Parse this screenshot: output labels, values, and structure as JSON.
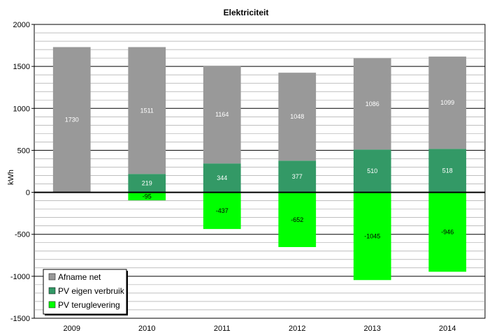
{
  "chart_data": {
    "type": "bar",
    "stacked": true,
    "title": "Elektriciteit",
    "ylabel": "kWh",
    "xlabel": "",
    "ylim": [
      -1500,
      2000
    ],
    "y_major_ticks": [
      -1500,
      -1000,
      -500,
      0,
      500,
      1000,
      1500,
      2000
    ],
    "y_minor_step": 100,
    "grid": true,
    "legend_position": "bottom-left",
    "categories": [
      "2009",
      "2010",
      "2011",
      "2012",
      "2013",
      "2014"
    ],
    "series": [
      {
        "name": "Afname net",
        "color": "#999999",
        "label_color": "#ffffff",
        "values": [
          1730,
          1511,
          1164,
          1048,
          1086,
          1099
        ]
      },
      {
        "name": "PV eigen verbruik",
        "color": "#339966",
        "label_color": "#ffffff",
        "values": [
          0,
          219,
          344,
          377,
          510,
          518
        ]
      },
      {
        "name": "PV teruglevering",
        "color": "#00ff00",
        "label_color": "#000000",
        "values": [
          0,
          -95,
          -437,
          -652,
          -1045,
          -946
        ]
      }
    ]
  }
}
